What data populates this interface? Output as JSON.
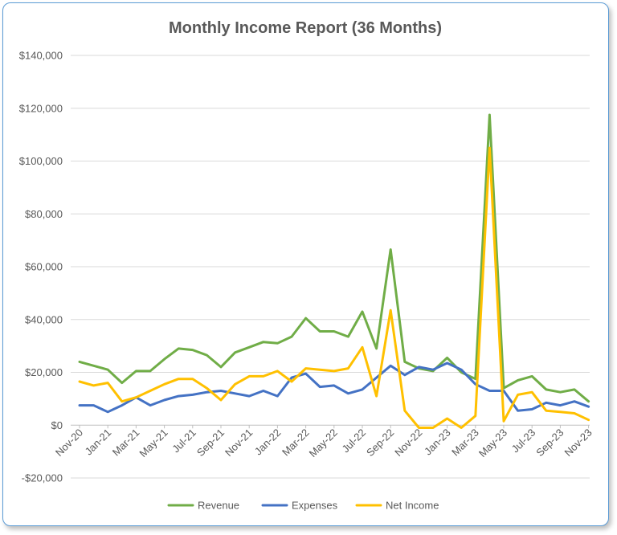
{
  "chart_data": {
    "type": "line",
    "title": "Monthly Income Report (36 Months)",
    "xlabel": "",
    "ylabel": "",
    "ylim": [
      -20000,
      140000
    ],
    "y_ticks": [
      -20000,
      0,
      20000,
      40000,
      60000,
      80000,
      100000,
      120000,
      140000
    ],
    "y_tick_labels": [
      "-$20,000",
      "$0",
      "$20,000",
      "$40,000",
      "$60,000",
      "$80,000",
      "$100,000",
      "$120,000",
      "$140,000"
    ],
    "categories": [
      "Nov-20",
      "Dec-20",
      "Jan-21",
      "Feb-21",
      "Mar-21",
      "Apr-21",
      "May-21",
      "Jun-21",
      "Jul-21",
      "Aug-21",
      "Sep-21",
      "Oct-21",
      "Nov-21",
      "Dec-21",
      "Jan-22",
      "Feb-22",
      "Mar-22",
      "Apr-22",
      "May-22",
      "Jun-22",
      "Jul-22",
      "Aug-22",
      "Sep-22",
      "Oct-22",
      "Nov-22",
      "Dec-22",
      "Jan-23",
      "Feb-23",
      "Mar-23",
      "Apr-23",
      "May-23",
      "Jun-23",
      "Jul-23",
      "Aug-23",
      "Sep-23",
      "Oct-23",
      "Nov-23"
    ],
    "x_tick_labels": [
      "Nov-20",
      "Jan-21",
      "Mar-21",
      "May-21",
      "Jul-21",
      "Sep-21",
      "Nov-21",
      "Jan-22",
      "Mar-22",
      "May-22",
      "Jul-22",
      "Sep-22",
      "Nov-22",
      "Jan-23",
      "Mar-23",
      "May-23",
      "Jul-23",
      "Sep-23",
      "Nov-23"
    ],
    "grid": true,
    "legend_position": "bottom",
    "series": [
      {
        "name": "Revenue",
        "color": "#70ad47",
        "values": [
          24000,
          22500,
          21000,
          16000,
          20500,
          20500,
          25000,
          29000,
          28500,
          26500,
          22000,
          27500,
          29500,
          31500,
          31000,
          33500,
          40500,
          35500,
          35500,
          33500,
          43000,
          29000,
          66500,
          24000,
          21500,
          20500,
          25500,
          20000,
          17500,
          117500,
          14000,
          17000,
          18500,
          13500,
          12500,
          13500,
          9000
        ]
      },
      {
        "name": "Expenses",
        "color": "#4472c4",
        "values": [
          7500,
          7500,
          5000,
          7500,
          10500,
          7500,
          9500,
          11000,
          11500,
          12500,
          13000,
          12000,
          11000,
          13000,
          11000,
          18000,
          19500,
          14500,
          15000,
          12000,
          13500,
          18000,
          22500,
          19000,
          22000,
          21000,
          23500,
          21000,
          15500,
          13000,
          13000,
          5500,
          6000,
          8500,
          7500,
          9000,
          7000
        ]
      },
      {
        "name": "Net Income",
        "color": "#ffc000",
        "values": [
          16500,
          15000,
          16000,
          9000,
          10500,
          13000,
          15500,
          17500,
          17500,
          14000,
          9500,
          15500,
          18500,
          18500,
          20500,
          16500,
          21500,
          21000,
          20500,
          21500,
          29500,
          11000,
          43500,
          5500,
          -1000,
          -1000,
          2500,
          -1000,
          3500,
          105000,
          1500,
          11500,
          12500,
          5500,
          5000,
          4500,
          2000
        ]
      }
    ]
  }
}
